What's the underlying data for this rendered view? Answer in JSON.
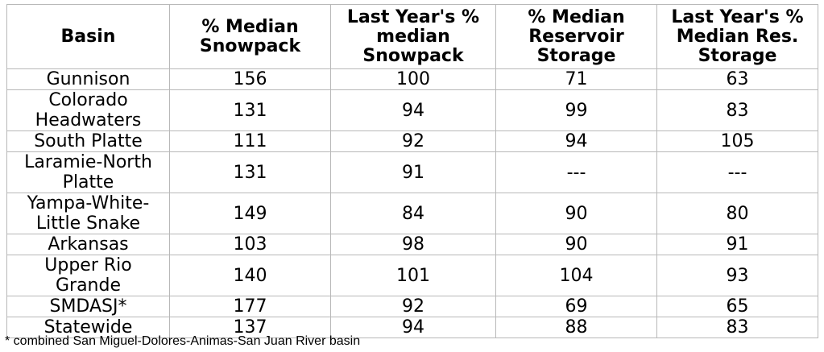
{
  "table": {
    "header": [
      "Basin",
      "% Median Snowpack",
      "Last Year's % median Snowpack",
      "% Median Reservoir Storage",
      "Last Year's % Median Res. Storage"
    ],
    "rows": [
      [
        "Gunnison",
        156,
        100,
        71,
        63
      ],
      [
        "Colorado Headwaters",
        131,
        94,
        99,
        83
      ],
      [
        "South Platte",
        111,
        92,
        94,
        105
      ],
      [
        "Laramie-North Platte",
        131,
        91,
        "---",
        "---"
      ],
      [
        "Yampa-White-Little Snake",
        149,
        84,
        90,
        80
      ],
      [
        "Arkansas",
        103,
        98,
        90,
        91
      ],
      [
        "Upper Rio Grande",
        140,
        101,
        104,
        93
      ],
      [
        "SMDASJ*",
        177,
        92,
        69,
        65
      ],
      [
        "Statewide",
        137,
        94,
        88,
        83
      ]
    ]
  },
  "footnote": "* combined San Miguel-Dolores-Animas-San Juan River basin"
}
